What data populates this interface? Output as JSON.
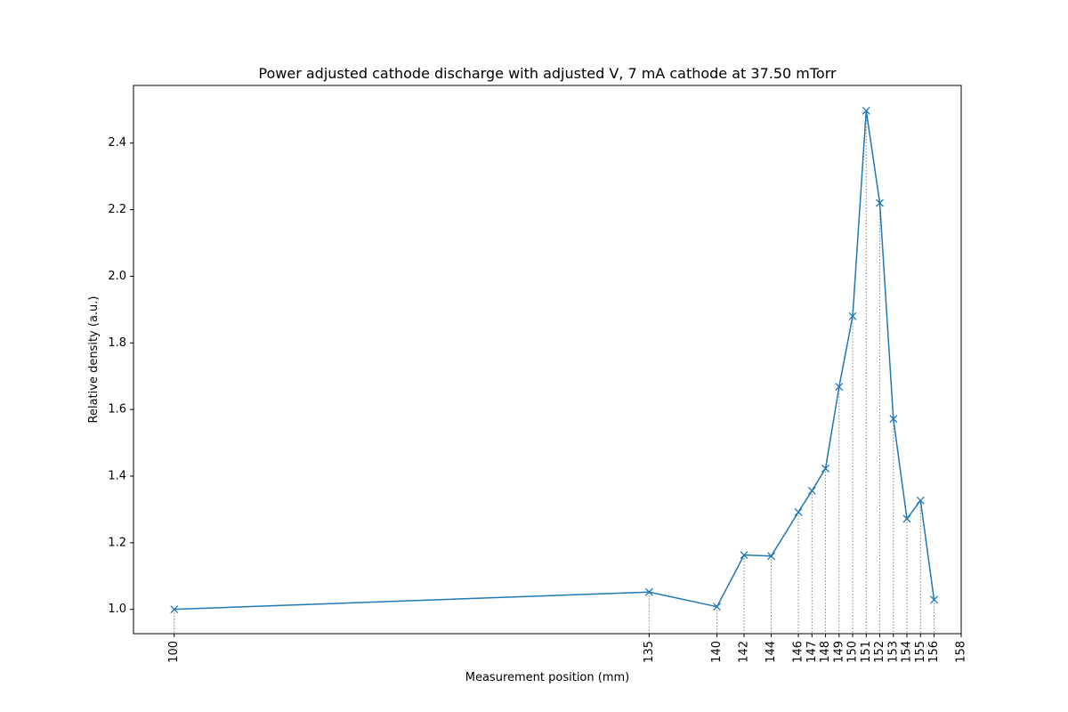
{
  "chart_data": {
    "type": "line",
    "title": "Power adjusted cathode discharge with adjusted V, 7 mA cathode at 37.50 mTorr",
    "xlabel": "Measurement position (mm)",
    "ylabel": "Relative density (a.u.)",
    "xlim": [
      97,
      158
    ],
    "ylim": [
      0.927,
      2.573
    ],
    "x_ticks": [
      100,
      135,
      140,
      142,
      144,
      146,
      147,
      148,
      149,
      150,
      151,
      152,
      153,
      154,
      155,
      156,
      158
    ],
    "x_tick_labels": [
      "100",
      "135",
      "140",
      "142",
      "144",
      "146",
      "147",
      "148",
      "149",
      "150",
      "151",
      "152",
      "153",
      "154",
      "155",
      "156",
      "158"
    ],
    "y_ticks": [
      1.0,
      1.2,
      1.4,
      1.6,
      1.8,
      2.0,
      2.2,
      2.4
    ],
    "y_tick_labels": [
      "1.0",
      "1.2",
      "1.4",
      "1.6",
      "1.8",
      "2.0",
      "2.2",
      "2.4"
    ],
    "grid": false,
    "marker": "x",
    "drop_lines": true,
    "series": [
      {
        "color": "#1f77b4",
        "x": [
          100,
          135,
          140,
          142,
          144,
          146,
          147,
          148,
          149,
          150,
          151,
          152,
          153,
          154,
          155,
          156
        ],
        "y": [
          1.0,
          1.052,
          1.008,
          1.163,
          1.16,
          1.292,
          1.356,
          1.423,
          1.668,
          1.88,
          2.497,
          2.22,
          1.572,
          1.272,
          1.327,
          1.029
        ]
      }
    ]
  }
}
